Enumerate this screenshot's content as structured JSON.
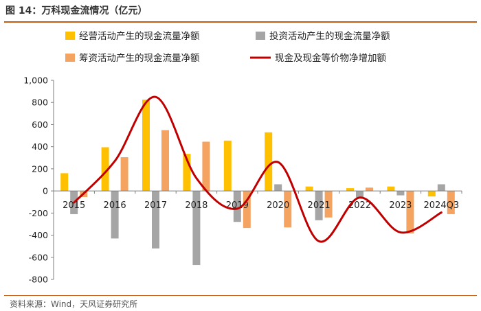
{
  "figure": {
    "title": "图 14：万科现金流情况（亿元）",
    "source": "资料来源：Wind，天风证券研究所"
  },
  "chart_data": {
    "type": "bar",
    "categories": [
      "2015",
      "2016",
      "2017",
      "2018",
      "2019",
      "2020",
      "2021",
      "2022",
      "2023",
      "2024Q3"
    ],
    "ylim": [
      -800,
      1000
    ],
    "yticks": [
      -800,
      -600,
      -400,
      -200,
      0,
      200,
      400,
      600,
      800,
      1000
    ],
    "ytick_labels": [
      "-800",
      "-600",
      "-400",
      "-200",
      "0",
      "200",
      "400",
      "600",
      "800",
      "1,000"
    ],
    "grid": false,
    "legend_position": "top",
    "series": [
      {
        "name": "经营活动产生的现金流量净额",
        "type": "bar",
        "color": "#ffc000",
        "values": [
          160,
          395,
          825,
          335,
          455,
          530,
          40,
          25,
          40,
          -50
        ]
      },
      {
        "name": "投资活动产生的现金流量净额",
        "type": "bar",
        "color": "#a5a5a5",
        "values": [
          -210,
          -430,
          -520,
          -670,
          -280,
          60,
          -265,
          -60,
          -40,
          60
        ]
      },
      {
        "name": "筹资活动产生的现金流量净额",
        "type": "bar",
        "color": "#f4a460",
        "values": [
          -55,
          305,
          550,
          445,
          -335,
          -330,
          -240,
          30,
          -385,
          -210
        ]
      },
      {
        "name": "现金及现金等价物净增加额",
        "type": "line",
        "color": "#c00000",
        "values": [
          -105,
          270,
          850,
          115,
          -160,
          260,
          -455,
          -60,
          -375,
          -195
        ]
      }
    ]
  }
}
